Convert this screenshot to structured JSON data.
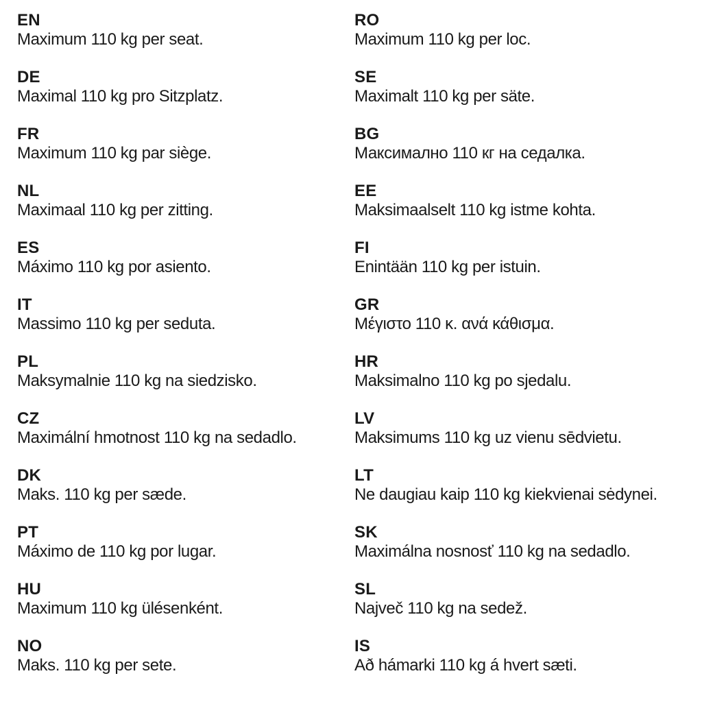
{
  "page": {
    "background_color": "#ffffff",
    "text_color": "#1a1a1a",
    "subject": "Maximum seat load notice, multilingual"
  },
  "entries_left": [
    {
      "code": "EN",
      "text": "Maximum 110 kg per seat."
    },
    {
      "code": "DE",
      "text": "Maximal 110 kg pro Sitzplatz."
    },
    {
      "code": "FR",
      "text": "Maximum 110 kg par siège."
    },
    {
      "code": "NL",
      "text": "Maximaal 110 kg per zitting."
    },
    {
      "code": "ES",
      "text": "Máximo 110 kg por asiento."
    },
    {
      "code": "IT",
      "text": "Massimo 110 kg per seduta."
    },
    {
      "code": "PL",
      "text": "Maksymalnie 110 kg na siedzisko."
    },
    {
      "code": "CZ",
      "text": "Maximální hmotnost 110 kg na sedadlo."
    },
    {
      "code": "DK",
      "text": "Maks. 110 kg per sæde."
    },
    {
      "code": "PT",
      "text": "Máximo de 110 kg por lugar."
    },
    {
      "code": "HU",
      "text": "Maximum 110 kg ülésenként."
    },
    {
      "code": "NO",
      "text": "Maks. 110 kg per sete."
    }
  ],
  "entries_right": [
    {
      "code": "RO",
      "text": "Maximum 110 kg per loc."
    },
    {
      "code": "SE",
      "text": "Maximalt 110 kg per säte."
    },
    {
      "code": "BG",
      "text": "Максимално 110 кг на седалка."
    },
    {
      "code": "EE",
      "text": "Maksimaalselt 110 kg istme kohta."
    },
    {
      "code": "FI",
      "text": "Enintään 110 kg per istuin."
    },
    {
      "code": "GR",
      "text": "Μέγιστο 110 κ. ανά κάθισμα."
    },
    {
      "code": "HR",
      "text": "Maksimalno 110 kg po sjedalu."
    },
    {
      "code": "LV",
      "text": "Maksimums 110 kg uz vienu sēdvietu."
    },
    {
      "code": "LT",
      "text": "Ne daugiau kaip 110 kg kiekvienai sėdynei."
    },
    {
      "code": "SK",
      "text": "Maximálna nosnosť 110 kg na sedadlo."
    },
    {
      "code": "SL",
      "text": "Največ 110 kg na sedež."
    },
    {
      "code": "IS",
      "text": "Að hámarki 110 kg á hvert sæti."
    }
  ]
}
